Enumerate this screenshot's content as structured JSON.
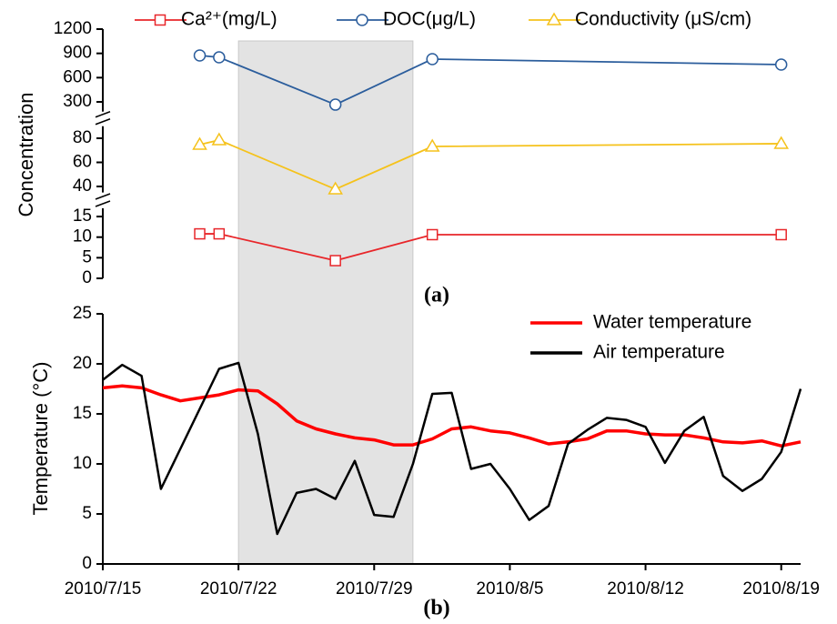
{
  "chart_data": [
    {
      "type": "line",
      "label": "(a)",
      "y_label": "Concentration",
      "legend": "top",
      "xlim": [
        "2010/7/15",
        "2010/8/20"
      ],
      "highlight_range": [
        "2010/7/22",
        "2010/7/31"
      ],
      "highlight_color": "#e3e3e3",
      "x": [
        "2010/7/20",
        "2010/7/21",
        "2010/7/27",
        "2010/8/1",
        "2010/8/19"
      ],
      "ylim": [
        0,
        17
      ],
      "yticks": [
        0,
        5,
        10,
        15
      ],
      "y2lim": [
        35,
        90
      ],
      "y2ticks": [
        40,
        60,
        80
      ],
      "y3lim": [
        180,
        1200
      ],
      "y3ticks": [
        300,
        600,
        900,
        1200
      ],
      "series": [
        {
          "name": "Ca²⁺(mg/L)",
          "color": "#e8262a",
          "marker": "square",
          "axis": "y",
          "values": [
            10.8,
            10.8,
            4.3,
            10.6,
            10.6
          ]
        },
        {
          "name": "DOC(μg/L)",
          "color": "#2b5d9c",
          "marker": "circle",
          "axis": "y3",
          "values": [
            874,
            851,
            266,
            829,
            761
          ]
        },
        {
          "name": "Conductivity (μS/cm)",
          "color": "#f5c21b",
          "marker": "triangle",
          "axis": "y2",
          "values": [
            74.7,
            78.5,
            37.7,
            73.2,
            75.5
          ]
        }
      ]
    },
    {
      "type": "line",
      "label": "(b)",
      "y_label": "Temperature (°C)",
      "legend": "upper right",
      "xlim": [
        "2010/7/15",
        "2010/8/20"
      ],
      "xticks": [
        "2010/7/15",
        "2010/7/22",
        "2010/7/29",
        "2010/8/5",
        "2010/8/12",
        "2010/8/19"
      ],
      "ylim": [
        0,
        25
      ],
      "yticks": [
        0,
        5,
        10,
        15,
        20,
        25
      ],
      "x": [
        "2010/7/15",
        "2010/7/16",
        "2010/7/17",
        "2010/7/18",
        "2010/7/19",
        "2010/7/20",
        "2010/7/21",
        "2010/7/22",
        "2010/7/23",
        "2010/7/24",
        "2010/7/25",
        "2010/7/26",
        "2010/7/27",
        "2010/7/28",
        "2010/7/29",
        "2010/7/30",
        "2010/7/31",
        "2010/8/1",
        "2010/8/2",
        "2010/8/3",
        "2010/8/4",
        "2010/8/5",
        "2010/8/6",
        "2010/8/7",
        "2010/8/8",
        "2010/8/9",
        "2010/8/10",
        "2010/8/11",
        "2010/8/12",
        "2010/8/13",
        "2010/8/14",
        "2010/8/15",
        "2010/8/16",
        "2010/8/17",
        "2010/8/18",
        "2010/8/19",
        "2010/8/20"
      ],
      "series": [
        {
          "name": "Water  temperature",
          "color": "#ff0000",
          "axis": "y",
          "values": [
            17.6,
            17.8,
            17.6,
            16.9,
            16.3,
            16.6,
            16.9,
            17.4,
            17.3,
            16.0,
            14.3,
            13.5,
            13.0,
            12.6,
            12.4,
            11.9,
            11.9,
            12.5,
            13.5,
            13.7,
            13.3,
            13.1,
            12.6,
            12.0,
            12.2,
            12.5,
            13.3,
            13.3,
            13.0,
            12.9,
            12.9,
            12.6,
            12.2,
            12.1,
            12.3,
            11.8,
            12.2
          ]
        },
        {
          "name": "Air temperature",
          "color": "#000000",
          "axis": "y",
          "values": [
            18.4,
            19.9,
            18.8,
            7.5,
            11.5,
            15.5,
            19.5,
            20.1,
            13,
            3,
            7.1,
            7.5,
            6.5,
            10.3,
            4.9,
            4.7,
            10,
            17,
            17.1,
            9.5,
            10,
            7.5,
            4.4,
            5.8,
            12,
            13.4,
            14.6,
            14.4,
            13.7,
            10.1,
            13.3,
            14.7,
            8.8,
            7.3,
            8.5,
            11.2,
            17.5
          ]
        }
      ]
    }
  ]
}
